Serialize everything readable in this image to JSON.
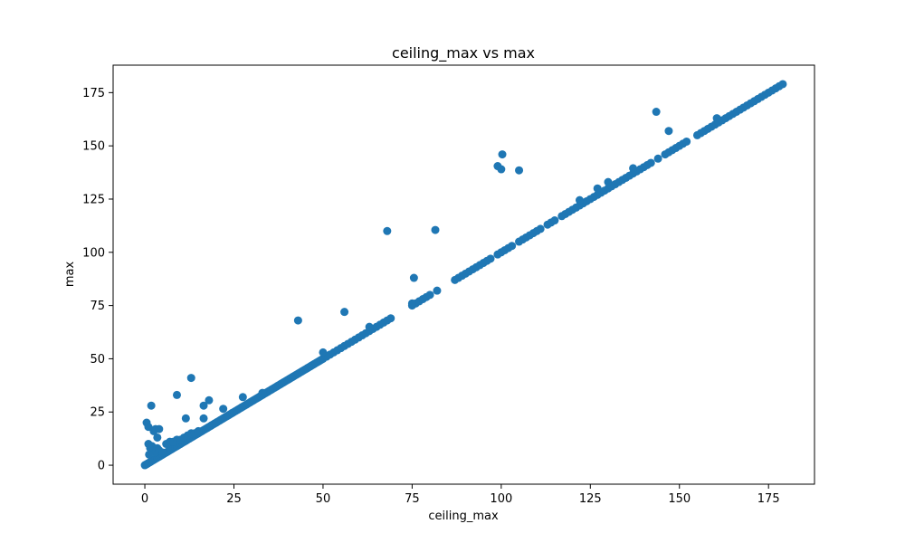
{
  "chart_data": {
    "type": "scatter",
    "title": "ceiling_max vs max",
    "xlabel": "ceiling_max",
    "ylabel": "max",
    "xlim": [
      -8.9,
      187.9
    ],
    "ylim": [
      -8.9,
      187.9
    ],
    "xticks": [
      0,
      25,
      50,
      75,
      100,
      125,
      150,
      175
    ],
    "yticks": [
      0,
      25,
      50,
      75,
      100,
      125,
      150,
      175
    ],
    "grid": false,
    "legend": "none",
    "marker_color": "#1f77b4",
    "series": [
      {
        "points": [
          [
            0,
            0
          ],
          [
            0.3,
            0.3
          ],
          [
            0.6,
            0.6
          ],
          [
            1,
            1
          ],
          [
            1.5,
            1.5
          ],
          [
            2,
            2
          ],
          [
            2.5,
            2.5
          ],
          [
            3,
            3
          ],
          [
            3.5,
            3.5
          ],
          [
            4,
            4
          ],
          [
            4.5,
            4.5
          ],
          [
            5,
            5
          ],
          [
            5.5,
            5.5
          ],
          [
            6,
            6
          ],
          [
            6.5,
            6.5
          ],
          [
            7,
            7
          ],
          [
            7.5,
            7.5
          ],
          [
            8,
            8
          ],
          [
            8.5,
            8.5
          ],
          [
            9,
            9
          ],
          [
            9.5,
            9.5
          ],
          [
            10,
            10
          ],
          [
            10.5,
            10.5
          ],
          [
            11,
            11
          ],
          [
            11.5,
            11.5
          ],
          [
            12,
            12
          ],
          [
            12.5,
            12.5
          ],
          [
            13,
            13
          ],
          [
            13.5,
            13.5
          ],
          [
            14,
            14
          ],
          [
            14.5,
            14.5
          ],
          [
            15,
            15
          ],
          [
            15.5,
            15.5
          ],
          [
            16,
            16
          ],
          [
            16.5,
            16.5
          ],
          [
            17,
            17
          ],
          [
            17.5,
            17.5
          ],
          [
            18,
            18
          ],
          [
            18.5,
            18.5
          ],
          [
            19,
            19
          ],
          [
            19.5,
            19.5
          ],
          [
            20,
            20
          ],
          [
            20.5,
            20.5
          ],
          [
            21,
            21
          ],
          [
            21.5,
            21.5
          ],
          [
            22,
            22
          ],
          [
            22.5,
            22.5
          ],
          [
            23,
            23
          ],
          [
            23.5,
            23.5
          ],
          [
            24,
            24
          ],
          [
            24.5,
            24.5
          ],
          [
            25,
            25
          ],
          [
            25.5,
            25.5
          ],
          [
            26,
            26
          ],
          [
            26.5,
            26.5
          ],
          [
            27,
            27
          ],
          [
            27.5,
            27.5
          ],
          [
            28,
            28
          ],
          [
            28.5,
            28.5
          ],
          [
            29,
            29
          ],
          [
            29.5,
            29.5
          ],
          [
            30,
            30
          ],
          [
            30.5,
            30.5
          ],
          [
            31,
            31
          ],
          [
            31.5,
            31.5
          ],
          [
            32,
            32
          ],
          [
            32.5,
            32.5
          ],
          [
            33,
            33
          ],
          [
            33.5,
            33.5
          ],
          [
            34,
            34
          ],
          [
            34.5,
            34.5
          ],
          [
            35,
            35
          ],
          [
            35.5,
            35.5
          ],
          [
            36,
            36
          ],
          [
            36.5,
            36.5
          ],
          [
            37,
            37
          ],
          [
            37.5,
            37.5
          ],
          [
            38,
            38
          ],
          [
            38.5,
            38.5
          ],
          [
            39,
            39
          ],
          [
            39.5,
            39.5
          ],
          [
            40,
            40
          ],
          [
            40.5,
            40.5
          ],
          [
            41,
            41
          ],
          [
            41.5,
            41.5
          ],
          [
            42,
            42
          ],
          [
            42.5,
            42.5
          ],
          [
            43,
            43
          ],
          [
            43.5,
            43.5
          ],
          [
            44,
            44
          ],
          [
            44.5,
            44.5
          ],
          [
            45,
            45
          ],
          [
            45.5,
            45.5
          ],
          [
            46,
            46
          ],
          [
            46.5,
            46.5
          ],
          [
            47,
            47
          ],
          [
            47.5,
            47.5
          ],
          [
            48,
            48
          ],
          [
            48.5,
            48.5
          ],
          [
            49,
            49
          ],
          [
            49.5,
            49.5
          ],
          [
            50,
            50
          ],
          [
            51,
            51
          ],
          [
            52,
            52
          ],
          [
            53,
            53
          ],
          [
            54,
            54
          ],
          [
            55,
            55
          ],
          [
            56,
            56
          ],
          [
            57,
            57
          ],
          [
            58,
            58
          ],
          [
            59,
            59
          ],
          [
            60,
            60
          ],
          [
            61,
            61
          ],
          [
            62,
            62
          ],
          [
            63,
            63
          ],
          [
            64,
            64
          ],
          [
            65,
            65
          ],
          [
            66,
            66
          ],
          [
            67,
            67
          ],
          [
            68,
            68
          ],
          [
            69,
            69
          ],
          [
            75,
            75
          ],
          [
            76,
            76
          ],
          [
            77,
            77
          ],
          [
            78,
            78
          ],
          [
            79,
            79
          ],
          [
            80,
            80
          ],
          [
            88,
            88
          ],
          [
            89,
            89
          ],
          [
            90,
            90
          ],
          [
            91,
            91
          ],
          [
            92,
            92
          ],
          [
            93,
            93
          ],
          [
            94,
            94
          ],
          [
            95,
            95
          ],
          [
            96,
            96
          ],
          [
            97,
            97
          ],
          [
            99,
            99
          ],
          [
            100,
            100
          ],
          [
            101,
            101
          ],
          [
            102,
            102
          ],
          [
            103,
            103
          ],
          [
            105,
            105
          ],
          [
            106,
            106
          ],
          [
            107,
            107
          ],
          [
            108,
            108
          ],
          [
            109,
            109
          ],
          [
            110,
            110
          ],
          [
            111,
            111
          ],
          [
            113,
            113
          ],
          [
            114,
            114
          ],
          [
            115,
            115
          ],
          [
            117,
            117
          ],
          [
            118,
            118
          ],
          [
            119,
            119
          ],
          [
            120,
            120
          ],
          [
            121,
            121
          ],
          [
            122,
            122
          ],
          [
            123,
            123
          ],
          [
            124,
            124
          ],
          [
            125,
            125
          ],
          [
            126,
            126
          ],
          [
            127,
            127
          ],
          [
            128,
            128
          ],
          [
            129,
            129
          ],
          [
            130,
            130
          ],
          [
            131,
            131
          ],
          [
            132,
            132
          ],
          [
            133,
            133
          ],
          [
            134,
            134
          ],
          [
            135,
            135
          ],
          [
            136,
            136
          ],
          [
            137,
            137
          ],
          [
            138,
            138
          ],
          [
            139,
            139
          ],
          [
            140,
            140
          ],
          [
            141,
            141
          ],
          [
            142,
            142
          ],
          [
            144,
            144
          ],
          [
            146,
            146
          ],
          [
            147,
            147
          ],
          [
            148,
            148
          ],
          [
            149,
            149
          ],
          [
            150,
            150
          ],
          [
            151,
            151
          ],
          [
            152,
            152
          ],
          [
            155,
            155
          ],
          [
            156,
            156
          ],
          [
            157,
            157
          ],
          [
            158,
            158
          ],
          [
            159,
            159
          ],
          [
            160,
            160
          ],
          [
            161,
            161
          ],
          [
            162,
            162
          ],
          [
            163,
            163
          ],
          [
            164,
            164
          ],
          [
            165,
            165
          ],
          [
            166,
            166
          ],
          [
            167,
            167
          ],
          [
            168,
            168
          ],
          [
            169,
            169
          ],
          [
            170,
            170
          ],
          [
            171,
            171
          ],
          [
            172,
            172
          ],
          [
            173,
            173
          ],
          [
            174,
            174
          ],
          [
            175,
            175
          ],
          [
            176,
            176
          ],
          [
            177,
            177
          ],
          [
            178,
            178
          ],
          [
            179,
            179
          ],
          [
            0.5,
            20
          ],
          [
            1,
            18
          ],
          [
            1.8,
            28
          ],
          [
            2.5,
            16
          ],
          [
            3,
            17
          ],
          [
            3.5,
            13
          ],
          [
            4,
            17
          ],
          [
            1,
            10
          ],
          [
            1.5,
            8
          ],
          [
            2,
            9
          ],
          [
            2.5,
            7
          ],
          [
            3,
            6
          ],
          [
            3.5,
            8
          ],
          [
            4,
            7
          ],
          [
            5,
            6
          ],
          [
            1.2,
            5
          ],
          [
            6,
            10
          ],
          [
            7,
            11
          ],
          [
            8,
            11
          ],
          [
            9,
            12
          ],
          [
            10,
            12
          ],
          [
            11,
            13
          ],
          [
            12,
            14
          ],
          [
            13,
            15
          ],
          [
            14,
            15
          ],
          [
            15,
            16
          ],
          [
            9,
            33
          ],
          [
            11.5,
            22
          ],
          [
            13,
            41
          ],
          [
            16.5,
            22
          ],
          [
            16.5,
            28
          ],
          [
            18,
            30.5
          ],
          [
            22,
            26.5
          ],
          [
            27.5,
            32
          ],
          [
            33,
            34
          ],
          [
            43,
            68
          ],
          [
            50,
            53
          ],
          [
            56,
            72
          ],
          [
            63,
            65
          ],
          [
            68,
            110
          ],
          [
            75,
            76
          ],
          [
            75.5,
            88
          ],
          [
            81.5,
            110.5
          ],
          [
            82,
            82
          ],
          [
            87,
            87
          ],
          [
            99,
            140.5
          ],
          [
            100,
            139
          ],
          [
            100.3,
            146
          ],
          [
            105,
            138.5
          ],
          [
            122,
            124.5
          ],
          [
            127,
            130
          ],
          [
            130,
            133
          ],
          [
            137,
            139.5
          ],
          [
            143.5,
            166
          ],
          [
            147,
            157
          ],
          [
            160.5,
            163
          ]
        ]
      }
    ]
  }
}
